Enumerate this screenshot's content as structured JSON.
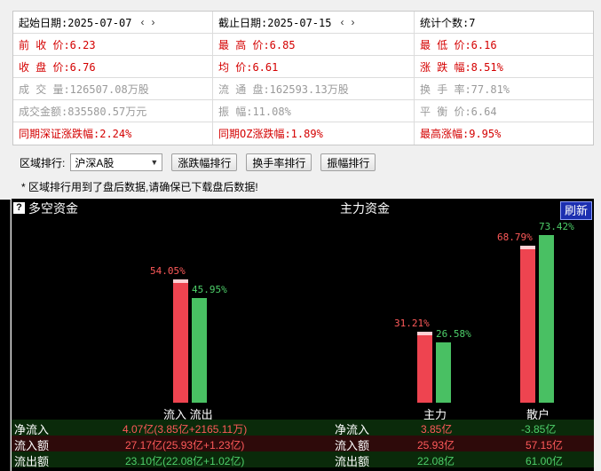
{
  "stats": {
    "row1": {
      "start_date": "起始日期:2025-07-07",
      "end_date": "截止日期:2025-07-15",
      "count": "统计个数:7",
      "prev": "‹",
      "next": "›"
    },
    "row2": {
      "prev_close": "前 收 价:6.23",
      "high": "最 高 价:6.85",
      "low": "最 低 价:6.16"
    },
    "row3": {
      "close": "收 盘 价:6.76",
      "avg": "均     价:6.61",
      "change": "涨 跌 幅:8.51%"
    },
    "row4": {
      "volume": "成 交 量:126507.08万股",
      "float": "流 通 盘:162593.13万股",
      "turnover": "换 手 率:77.81%"
    },
    "row5": {
      "amount": "成交金额:835580.57万元",
      "amplitude": "振     幅:11.08%",
      "balance": "平 衡 价:6.64"
    },
    "row6": {
      "sz_change": "同期深证涨跌幅:2.24%",
      "oz_change": "同期OZ涨跌幅:1.89%",
      "max_change": "最高涨幅:9.95%"
    }
  },
  "rank": {
    "label": "区域排行:",
    "region_value": "沪深A股",
    "btn_change": "涨跌幅排行",
    "btn_turnover": "换手率排行",
    "btn_amplitude": "振幅排行"
  },
  "notice": "* 区域排行用到了盘后数据,请确保已下载盘后数据!",
  "flow": {
    "help": "?",
    "title": "多空资金",
    "main_title": "主力资金",
    "refresh": "刷新",
    "labels": {
      "flow_in_out": "流入 流出",
      "main": "主力",
      "retail": "散户"
    },
    "rows": [
      {
        "label": "净流入",
        "total": "4.07亿(3.85亿+2165.11万)",
        "main": "3.85亿",
        "retail": "-3.85亿"
      },
      {
        "label": "流入额",
        "total": "27.17亿(25.93亿+1.23亿)",
        "main": "25.93亿",
        "retail": "57.15亿"
      },
      {
        "label": "流出额",
        "total": "23.10亿(22.08亿+1.02亿)",
        "main": "22.08亿",
        "retail": "61.00亿"
      }
    ]
  },
  "chart_data": {
    "type": "bar",
    "categories": [
      "流入 流出",
      "主力",
      "散户"
    ],
    "series": [
      {
        "name": "流入",
        "values": [
          54.05,
          31.21,
          68.79
        ]
      },
      {
        "name": "流出",
        "values": [
          45.95,
          26.58,
          73.42
        ]
      }
    ],
    "labels_in": [
      "54.05%",
      "31.21%",
      "68.79%"
    ],
    "labels_out": [
      "45.95%",
      "26.58%",
      "73.42%"
    ],
    "ylim": [
      0,
      100
    ],
    "colors": {
      "in": "#ee4450",
      "out": "#49c063"
    }
  }
}
